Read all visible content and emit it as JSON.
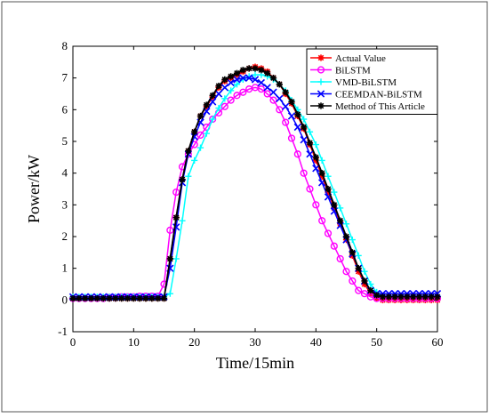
{
  "chart_data": {
    "type": "line",
    "title": "",
    "xlabel": "Time/15min",
    "ylabel": "Power/kW",
    "xlim": [
      0,
      60
    ],
    "ylim": [
      -1,
      8
    ],
    "xticks": [
      0,
      10,
      20,
      30,
      40,
      50,
      60
    ],
    "yticks": [
      -1,
      0,
      1,
      2,
      3,
      4,
      5,
      6,
      7,
      8
    ],
    "grid": false,
    "legend_position": "top-right",
    "x": [
      0,
      1,
      2,
      3,
      4,
      5,
      6,
      7,
      8,
      9,
      10,
      11,
      12,
      13,
      14,
      15,
      16,
      17,
      18,
      19,
      20,
      21,
      22,
      23,
      24,
      25,
      26,
      27,
      28,
      29,
      30,
      31,
      32,
      33,
      34,
      35,
      36,
      37,
      38,
      39,
      40,
      41,
      42,
      43,
      44,
      45,
      46,
      47,
      48,
      49,
      50,
      51,
      52,
      53,
      54,
      55,
      56,
      57,
      58,
      59,
      60
    ],
    "series": [
      {
        "name": "Actual Value",
        "color": "#ff0000",
        "marker": "star",
        "values": [
          0.05,
          0.05,
          0.05,
          0.05,
          0.05,
          0.05,
          0.05,
          0.05,
          0.05,
          0.05,
          0.05,
          0.05,
          0.05,
          0.05,
          0.05,
          0.05,
          1.3,
          2.6,
          3.8,
          4.7,
          5.3,
          5.8,
          6.1,
          6.4,
          6.7,
          6.9,
          7.0,
          7.1,
          7.2,
          7.3,
          7.35,
          7.3,
          7.2,
          7.0,
          6.8,
          6.5,
          6.2,
          5.8,
          5.4,
          4.9,
          4.4,
          3.9,
          3.4,
          2.9,
          2.4,
          1.9,
          1.4,
          0.9,
          0.5,
          0.2,
          0.05,
          0.0,
          0.0,
          0.0,
          0.0,
          0.0,
          0.0,
          0.0,
          0.0,
          0.0,
          0.0
        ]
      },
      {
        "name": "BiLSTM",
        "color": "#ff00ff",
        "marker": "circle",
        "values": [
          0.05,
          0.05,
          0.05,
          0.05,
          0.05,
          0.05,
          0.08,
          0.08,
          0.1,
          0.1,
          0.1,
          0.12,
          0.12,
          0.12,
          0.12,
          0.5,
          2.2,
          3.4,
          4.2,
          4.6,
          4.9,
          5.2,
          5.45,
          5.7,
          5.9,
          6.1,
          6.3,
          6.45,
          6.55,
          6.65,
          6.7,
          6.65,
          6.5,
          6.3,
          6.0,
          5.6,
          5.1,
          4.6,
          4.0,
          3.5,
          3.0,
          2.5,
          2.1,
          1.7,
          1.3,
          0.9,
          0.6,
          0.3,
          0.2,
          0.1,
          0.05,
          0.05,
          0.05,
          0.05,
          0.05,
          0.05,
          0.05,
          0.05,
          0.05,
          0.05,
          0.05
        ]
      },
      {
        "name": "VMD-BiLSTM",
        "color": "#00ffff",
        "marker": "plus",
        "values": [
          0.1,
          0.1,
          0.1,
          0.1,
          0.1,
          0.1,
          0.1,
          0.1,
          0.1,
          0.1,
          0.1,
          0.1,
          0.1,
          0.1,
          0.1,
          0.1,
          0.2,
          1.3,
          2.5,
          3.9,
          4.4,
          4.8,
          5.25,
          5.7,
          6.05,
          6.35,
          6.6,
          6.8,
          6.95,
          7.05,
          7.1,
          7.1,
          7.05,
          6.95,
          6.8,
          6.6,
          6.3,
          6.0,
          5.7,
          5.3,
          4.9,
          4.4,
          3.9,
          3.4,
          2.9,
          2.4,
          1.9,
          1.4,
          0.9,
          0.5,
          0.25,
          0.1,
          0.1,
          0.1,
          0.1,
          0.1,
          0.1,
          0.1,
          0.1,
          0.1,
          0.1
        ]
      },
      {
        "name": "CEEMDAN-BiLSTM",
        "color": "#0000ff",
        "marker": "x",
        "values": [
          0.1,
          0.1,
          0.1,
          0.1,
          0.1,
          0.1,
          0.1,
          0.1,
          0.1,
          0.1,
          0.1,
          0.1,
          0.1,
          0.1,
          0.1,
          0.1,
          1.0,
          2.3,
          3.7,
          4.6,
          5.15,
          5.6,
          5.95,
          6.25,
          6.5,
          6.7,
          6.85,
          6.95,
          7.0,
          7.0,
          6.95,
          6.85,
          6.7,
          6.55,
          6.35,
          6.1,
          5.8,
          5.45,
          5.05,
          4.6,
          4.15,
          3.7,
          3.25,
          2.8,
          2.35,
          1.9,
          1.45,
          1.0,
          0.6,
          0.3,
          0.2,
          0.2,
          0.2,
          0.2,
          0.2,
          0.2,
          0.2,
          0.2,
          0.2,
          0.2,
          0.2
        ]
      },
      {
        "name": "Method of This Article",
        "color": "#000000",
        "marker": "star",
        "values": [
          0.05,
          0.05,
          0.05,
          0.05,
          0.05,
          0.05,
          0.05,
          0.05,
          0.05,
          0.05,
          0.05,
          0.05,
          0.05,
          0.05,
          0.05,
          0.05,
          1.3,
          2.6,
          3.8,
          4.7,
          5.3,
          5.8,
          6.15,
          6.45,
          6.75,
          6.95,
          7.05,
          7.15,
          7.25,
          7.3,
          7.3,
          7.25,
          7.15,
          7.0,
          6.8,
          6.55,
          6.25,
          5.85,
          5.45,
          4.95,
          4.5,
          4.0,
          3.5,
          3.0,
          2.5,
          2.0,
          1.5,
          1.0,
          0.6,
          0.3,
          0.15,
          0.1,
          0.1,
          0.1,
          0.1,
          0.1,
          0.1,
          0.1,
          0.1,
          0.1,
          0.1
        ]
      }
    ]
  }
}
